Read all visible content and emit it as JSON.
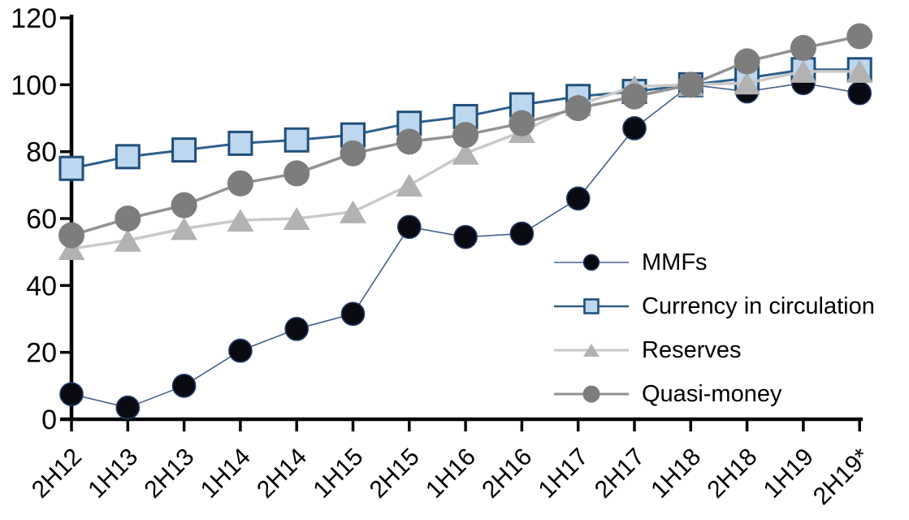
{
  "chart_data": {
    "type": "line",
    "title": "",
    "xlabel": "",
    "ylabel": "",
    "categories": [
      "2H12",
      "1H13",
      "2H13",
      "1H14",
      "2H14",
      "1H15",
      "2H15",
      "1H16",
      "2H16",
      "1H17",
      "2H17",
      "1H18",
      "2H18",
      "1H19",
      "2H19*"
    ],
    "yticks": [
      0,
      20,
      40,
      60,
      80,
      100,
      120
    ],
    "ylim": [
      0,
      120
    ],
    "grid": false,
    "legend_position": "inside-right",
    "series": [
      {
        "name": "MMFs",
        "marker": "circle",
        "marker_fill": "#0a0a12",
        "marker_stroke": "#203864",
        "line_color": "#44618e",
        "values": [
          7.5,
          3.5,
          10,
          20.5,
          27,
          31.5,
          57.5,
          54.5,
          55.5,
          66,
          87,
          100,
          98,
          100.5,
          97.5
        ]
      },
      {
        "name": "Currency in circulation",
        "marker": "square",
        "marker_fill": "#bdd7ee",
        "marker_stroke": "#1f4e79",
        "line_color": "#2c5f8c",
        "values": [
          75,
          78.5,
          80.5,
          82.5,
          83.5,
          85,
          88.5,
          90.5,
          94,
          96.5,
          98,
          100,
          102,
          104.5,
          104.5
        ]
      },
      {
        "name": "Reserves",
        "marker": "triangle",
        "marker_fill": "#b2b2b2",
        "marker_stroke": "none",
        "line_color": "#c9c9c9",
        "values": [
          51,
          53.5,
          57,
          59.5,
          60,
          62,
          70,
          79.5,
          86,
          94,
          99.5,
          100,
          100.5,
          104,
          104
        ]
      },
      {
        "name": "Quasi-money",
        "marker": "circle",
        "marker_fill": "#7d7d7d",
        "marker_stroke": "none",
        "line_color": "#929292",
        "values": [
          55,
          60,
          64,
          70.5,
          73.5,
          79.5,
          83,
          85,
          88.5,
          93,
          96.5,
          100,
          107,
          111,
          114.5
        ]
      }
    ],
    "axis_color": "#000000"
  },
  "legend": {
    "items": [
      {
        "label": "MMFs"
      },
      {
        "label": "Currency in circulation"
      },
      {
        "label": "Reserves"
      },
      {
        "label": "Quasi-money"
      }
    ]
  }
}
